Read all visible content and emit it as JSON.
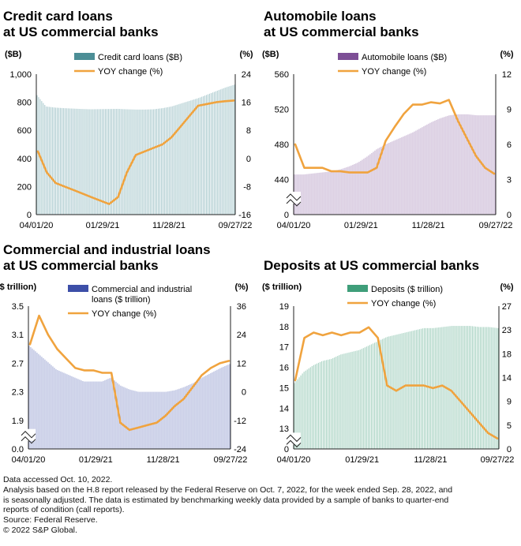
{
  "chart_data": [
    {
      "type": "bar+line",
      "title": "Credit card loans at US commercial banks",
      "title_lines": [
        "Credit card loans",
        "at US commercial banks"
      ],
      "ylabel_left": "($B)",
      "ylabel_right": "(%)",
      "left_ticks": [
        "1,000",
        "800",
        "600",
        "400",
        "200",
        "0"
      ],
      "left_range": [
        0,
        1000
      ],
      "right_ticks": [
        "24",
        "16",
        "8",
        "0",
        "-8",
        "-16"
      ],
      "right_range": [
        -16,
        24
      ],
      "x_ticks": [
        "04/01/20",
        "01/29/21",
        "11/28/21",
        "09/27/22"
      ],
      "axis_break": false,
      "bar_color": "#4c8e96",
      "line_color": "#f0a33e",
      "legend_bar": "Credit card loans ($B)",
      "legend_line": "YOY change (%)",
      "series": [
        {
          "name": "Credit card loans ($B)",
          "axis": "left",
          "kind": "bar",
          "values": [
            850,
            770,
            762,
            758,
            755,
            752,
            750,
            751,
            752,
            753,
            750,
            748,
            748,
            750,
            758,
            770,
            790,
            810,
            830,
            855,
            880,
            905,
            925
          ]
        },
        {
          "name": "YOY change (%)",
          "axis": "right",
          "kind": "line",
          "values": [
            2,
            -4,
            -7,
            -8,
            -9,
            -10,
            -11,
            -12,
            -13,
            -11,
            -4,
            1,
            2,
            3,
            4,
            6,
            9,
            12,
            15,
            15.5,
            16,
            16.3,
            16.5
          ]
        }
      ]
    },
    {
      "type": "bar+line",
      "title": "Automobile loans at US commercial banks",
      "title_lines": [
        "Automobile loans",
        "at US commercial banks"
      ],
      "ylabel_left": "($B)",
      "ylabel_right": "(%)",
      "left_ticks": [
        "560",
        "520",
        "480",
        "440",
        "0"
      ],
      "left_range": [
        420,
        560
      ],
      "right_ticks": [
        "12",
        "9",
        "6",
        "3",
        "0"
      ],
      "right_range": [
        0,
        12
      ],
      "x_ticks": [
        "04/01/20",
        "01/29/21",
        "11/28/21",
        "09/27/22"
      ],
      "axis_break": true,
      "bar_color": "#7d4f96",
      "line_color": "#f0a33e",
      "legend_bar": "Automobile loans ($B)",
      "legend_line": "YOY change (%)",
      "series": [
        {
          "name": "Automobile loans ($B)",
          "axis": "left",
          "kind": "bar",
          "values": [
            460,
            460,
            461,
            462,
            463,
            465,
            468,
            472,
            478,
            485,
            490,
            494,
            498,
            502,
            507,
            512,
            516,
            519,
            520,
            520,
            519,
            519,
            519
          ]
        },
        {
          "name": "YOY change (%)",
          "axis": "right",
          "kind": "line",
          "values": [
            6,
            4,
            4,
            4,
            3.7,
            3.7,
            3.6,
            3.6,
            3.6,
            4,
            6.3,
            7.5,
            8.6,
            9.4,
            9.4,
            9.6,
            9.5,
            9.8,
            8,
            6.5,
            5,
            4,
            3.5
          ]
        }
      ]
    },
    {
      "type": "bar+line",
      "title": "Commercial and industrial loans at US commercial banks",
      "title_lines": [
        "Commercial and industrial loans",
        "at US commercial banks"
      ],
      "ylabel_left": "($ trillion)",
      "ylabel_right": "(%)",
      "left_ticks": [
        "3.5",
        "3.1",
        "2.7",
        "2.3",
        "1.9",
        "0.0"
      ],
      "left_range": [
        1.7,
        3.5
      ],
      "right_ticks": [
        "36",
        "24",
        "12",
        "0",
        "-12",
        "-24"
      ],
      "right_range": [
        -24,
        36
      ],
      "x_ticks": [
        "04/01/20",
        "01/29/21",
        "11/28/21",
        "09/27/22"
      ],
      "axis_break": true,
      "bar_color": "#3d4fa8",
      "line_color": "#f0a33e",
      "legend_bar_lines": [
        "Commercial and industrial",
        "loans ($ trillion)"
      ],
      "legend_line": "YOY change (%)",
      "series": [
        {
          "name": "Commercial and industrial loans ($ trillion)",
          "axis": "left",
          "kind": "bar",
          "values": [
            3.0,
            2.9,
            2.8,
            2.7,
            2.65,
            2.6,
            2.55,
            2.55,
            2.55,
            2.6,
            2.5,
            2.45,
            2.42,
            2.42,
            2.42,
            2.42,
            2.44,
            2.48,
            2.53,
            2.6,
            2.66,
            2.72,
            2.77
          ]
        },
        {
          "name": "YOY change (%)",
          "axis": "right",
          "kind": "line",
          "values": [
            20,
            32,
            24,
            18,
            14,
            10,
            9,
            9,
            8,
            8,
            -13,
            -16,
            -15,
            -14,
            -13,
            -10,
            -6,
            -3,
            2,
            7,
            10,
            12,
            13
          ]
        }
      ]
    },
    {
      "type": "bar+line",
      "title": "Deposits at US commercial banks",
      "title_lines": [
        "Deposits at US commercial banks"
      ],
      "ylabel_left": "($ trillion)",
      "ylabel_right": "(%)",
      "left_ticks": [
        "19",
        "18",
        "17",
        "16",
        "15",
        "14",
        "13",
        "0"
      ],
      "left_range": [
        12.5,
        19
      ],
      "right_ticks": [
        "27",
        "23",
        "18",
        "14",
        "9",
        "5",
        "0"
      ],
      "right_range": [
        0,
        27
      ],
      "x_ticks": [
        "04/01/20",
        "01/29/21",
        "11/28/21",
        "09/27/22"
      ],
      "axis_break": true,
      "bar_color": "#3f9e7a",
      "line_color": "#f0a33e",
      "legend_bar": "Deposits ($ trillion)",
      "legend_line": "YOY change (%)",
      "series": [
        {
          "name": "Deposits ($ trillion)",
          "axis": "left",
          "kind": "bar",
          "values": [
            15.5,
            16.0,
            16.3,
            16.5,
            16.6,
            16.8,
            16.9,
            17.0,
            17.2,
            17.4,
            17.6,
            17.7,
            17.8,
            17.9,
            18.0,
            18.0,
            18.05,
            18.1,
            18.1,
            18.1,
            18.05,
            18.05,
            18.0
          ]
        },
        {
          "name": "YOY change (%)",
          "axis": "right",
          "kind": "line",
          "values": [
            13,
            21,
            22,
            21.5,
            22,
            21.5,
            22,
            22,
            23,
            21,
            12,
            11,
            12,
            12,
            12,
            11.5,
            12,
            11,
            9,
            7,
            5,
            3,
            2
          ]
        }
      ]
    }
  ],
  "footnotes": [
    "Data accessed Oct. 10, 2022.",
    "Analysis based on the H.8 report released by the Federal Reserve on Oct. 7, 2022, for the week ended Sep. 28, 2022, and",
    "is seasonally adjusted. The data is estimated by benchmarking weekly data provided by a sample of banks to quarter-end",
    "reports of condition (call reports).",
    "Source: Federal Reserve.",
    "© 2022 S&P Global."
  ]
}
